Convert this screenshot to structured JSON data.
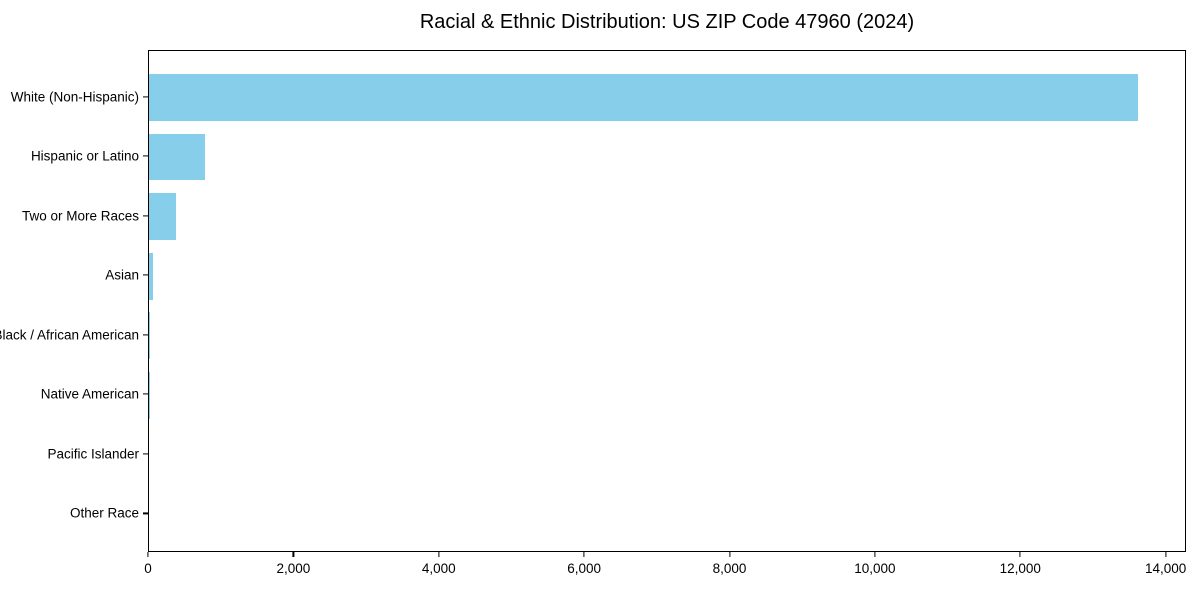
{
  "chart_data": {
    "type": "bar",
    "orientation": "horizontal",
    "title": "Racial & Ethnic Distribution: US ZIP Code 47960 (2024)",
    "categories": [
      "White (Non-Hispanic)",
      "Hispanic or Latino",
      "Two or More Races",
      "Asian",
      "Black / African American",
      "Native American",
      "Pacific Islander",
      "Other Race"
    ],
    "values": [
      13600,
      770,
      370,
      50,
      10,
      8,
      0,
      0
    ],
    "xlabel": "",
    "ylabel": "",
    "xlim": [
      0,
      14280
    ],
    "xticks": [
      0,
      2000,
      4000,
      6000,
      8000,
      10000,
      12000,
      14000
    ],
    "xtick_labels": [
      "0",
      "2,000",
      "4,000",
      "6,000",
      "8,000",
      "10,000",
      "12,000",
      "14,000"
    ],
    "bar_color": "#87CEEB",
    "axis_color": "#000000",
    "text_color": "#000000",
    "background": "#ffffff",
    "grid": false,
    "legend": null
  }
}
